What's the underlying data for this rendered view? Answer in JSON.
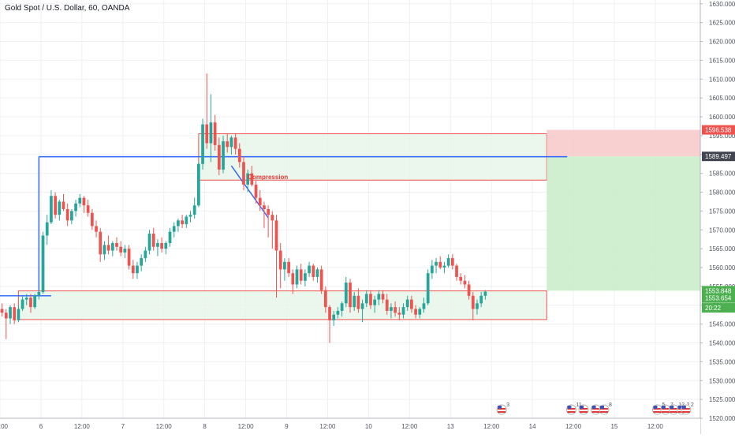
{
  "header": {
    "title": "Gold Spot / U.S. Dollar, 60, OANDA"
  },
  "colors": {
    "up": "#26a69a",
    "down": "#ef5350",
    "grid": "#eef0f3",
    "axis_text": "#50535e",
    "trend_line": "#2962ff",
    "annotation": "#e53935",
    "zone_fill": "#e8f5e9",
    "zone_border": "#ef5350",
    "stop_fill": "#f8c8c8",
    "target_fill": "#c8ecc8",
    "price_tag_red": "#ef5350",
    "price_tag_dark": "#434651",
    "price_tag_green": "#4caf50"
  },
  "chart_data": {
    "type": "candlestick",
    "y_ticks": [
      "1520.000",
      "1525.000",
      "1530.000",
      "1535.000",
      "1540.000",
      "1545.000",
      "1550.000",
      "1555.000",
      "1560.000",
      "1565.000",
      "1570.000",
      "1575.000",
      "1580.000",
      "1585.000",
      "1590.000",
      "1595.000",
      "1600.000",
      "1605.000",
      "1610.000",
      "1615.000",
      "1620.000",
      "1625.000",
      "1630.000"
    ],
    "ylim": [
      1520,
      1631
    ],
    "x_ticks": [
      "12:00",
      "6",
      "12:00",
      "7",
      "12:00",
      "8",
      "12:00",
      "9",
      "12:00",
      "10",
      "12:00",
      "13",
      "12:00",
      "14",
      "12:00",
      "15",
      "12:00"
    ],
    "x_tick_index": [
      0,
      10,
      20,
      30,
      40,
      50,
      60,
      70,
      80,
      90,
      100,
      110,
      120,
      130,
      140,
      150,
      160
    ],
    "x_bar_count": 171,
    "price_labels": [
      {
        "text": "1596.538",
        "price": 1596.538,
        "style": "red"
      },
      {
        "text": "1589.497",
        "price": 1589.497,
        "style": "dark"
      },
      {
        "text": "1553.848",
        "price": 1553.848,
        "style": "green"
      },
      {
        "text": "1553.654",
        "price": 1551.9,
        "style": "green"
      },
      {
        "text": "20:22",
        "price": 1549.3,
        "style": "green"
      }
    ],
    "zones": [
      {
        "name": "resistance-zone",
        "start": 48,
        "end": 133,
        "low": 1583.2,
        "high": 1595.5
      },
      {
        "name": "support-zone",
        "start": 4,
        "end": 133,
        "low": 1546.2,
        "high": 1553.8
      }
    ],
    "position": {
      "start": 133,
      "entry": 1589.497,
      "stop": 1596.538,
      "target": 1553.848
    },
    "lines": [
      {
        "name": "horizontal-line-top",
        "points": [
          [
            9,
            1589.4
          ],
          [
            138,
            1589.4
          ]
        ]
      },
      {
        "name": "vertical-line",
        "points": [
          [
            9,
            1589.4
          ],
          [
            9,
            1552.5
          ]
        ]
      },
      {
        "name": "horizontal-line-bottom",
        "points": [
          [
            -2,
            1552.5
          ],
          [
            12,
            1552.5
          ]
        ]
      },
      {
        "name": "compression-trendline",
        "points": [
          [
            56,
            1587.0
          ],
          [
            65,
            1573.2
          ]
        ]
      }
    ],
    "annotation": {
      "text": "Compression",
      "x": 60,
      "price": 1583.5
    },
    "event_markers": [
      {
        "x": 122,
        "count": "3"
      },
      {
        "x": 139,
        "count": "11"
      },
      {
        "x": 142,
        "count": ""
      },
      {
        "x": 145,
        "count": ""
      },
      {
        "x": 147,
        "count": "8"
      },
      {
        "x": 160,
        "count": "5"
      },
      {
        "x": 162,
        "count": "7"
      },
      {
        "x": 164,
        "count": "12"
      },
      {
        "x": 166,
        "count": "2"
      },
      {
        "x": 167,
        "count": "2"
      }
    ],
    "ohlc": [
      [
        1549.0,
        1550.5,
        1547.0,
        1548.0
      ],
      [
        1548.0,
        1549.0,
        1541.0,
        1546.5
      ],
      [
        1546.5,
        1550.0,
        1545.0,
        1549.5
      ],
      [
        1549.5,
        1550.5,
        1545.0,
        1546.0
      ],
      [
        1546.0,
        1550.0,
        1545.5,
        1549.0
      ],
      [
        1549.0,
        1552.5,
        1548.5,
        1551.5
      ],
      [
        1551.5,
        1553.0,
        1550.0,
        1552.0
      ],
      [
        1552.0,
        1553.0,
        1548.0,
        1549.5
      ],
      [
        1549.5,
        1553.0,
        1549.0,
        1552.5
      ],
      [
        1552.5,
        1554.0,
        1551.5,
        1553.5
      ],
      [
        1553.5,
        1569.5,
        1553.0,
        1568.5
      ],
      [
        1568.5,
        1574.0,
        1566.0,
        1572.0
      ],
      [
        1572.0,
        1580.5,
        1571.5,
        1579.0
      ],
      [
        1579.0,
        1580.0,
        1573.0,
        1574.0
      ],
      [
        1574.0,
        1578.0,
        1572.5,
        1577.5
      ],
      [
        1577.5,
        1579.5,
        1575.0,
        1575.5
      ],
      [
        1575.5,
        1577.0,
        1571.0,
        1572.5
      ],
      [
        1572.5,
        1575.5,
        1571.5,
        1575.0
      ],
      [
        1575.0,
        1578.0,
        1573.5,
        1577.0
      ],
      [
        1577.0,
        1579.5,
        1576.0,
        1578.5
      ],
      [
        1578.5,
        1579.0,
        1574.5,
        1576.5
      ],
      [
        1576.5,
        1578.0,
        1573.5,
        1574.5
      ],
      [
        1574.5,
        1575.5,
        1570.0,
        1571.0
      ],
      [
        1571.0,
        1572.5,
        1568.0,
        1569.5
      ],
      [
        1569.5,
        1570.5,
        1561.5,
        1563.5
      ],
      [
        1563.5,
        1567.0,
        1562.0,
        1566.0
      ],
      [
        1566.0,
        1568.5,
        1563.5,
        1564.5
      ],
      [
        1564.5,
        1567.0,
        1563.0,
        1566.5
      ],
      [
        1566.5,
        1568.0,
        1564.5,
        1565.5
      ],
      [
        1565.5,
        1567.0,
        1563.0,
        1564.0
      ],
      [
        1564.0,
        1566.0,
        1562.5,
        1565.0
      ],
      [
        1565.0,
        1566.0,
        1559.5,
        1560.5
      ],
      [
        1560.5,
        1562.0,
        1557.0,
        1558.5
      ],
      [
        1558.5,
        1561.5,
        1557.0,
        1560.5
      ],
      [
        1560.5,
        1563.5,
        1559.0,
        1562.5
      ],
      [
        1562.5,
        1565.5,
        1561.5,
        1564.5
      ],
      [
        1564.5,
        1570.0,
        1563.5,
        1569.0
      ],
      [
        1569.0,
        1570.5,
        1564.5,
        1565.5
      ],
      [
        1565.5,
        1567.5,
        1563.0,
        1566.5
      ],
      [
        1566.5,
        1568.0,
        1564.0,
        1565.0
      ],
      [
        1565.0,
        1567.0,
        1563.5,
        1566.5
      ],
      [
        1566.5,
        1570.5,
        1565.5,
        1569.5
      ],
      [
        1569.5,
        1572.0,
        1568.0,
        1571.0
      ],
      [
        1571.0,
        1573.0,
        1569.5,
        1572.5
      ],
      [
        1572.5,
        1574.0,
        1570.5,
        1571.5
      ],
      [
        1571.5,
        1574.0,
        1570.5,
        1573.5
      ],
      [
        1573.5,
        1575.0,
        1572.0,
        1574.0
      ],
      [
        1574.0,
        1578.5,
        1573.0,
        1576.5
      ],
      [
        1576.5,
        1588.0,
        1576.0,
        1587.5
      ],
      [
        1587.5,
        1599.5,
        1586.0,
        1598.0
      ],
      [
        1598.0,
        1611.5,
        1591.5,
        1593.0
      ],
      [
        1593.0,
        1606.0,
        1588.0,
        1598.5
      ],
      [
        1598.5,
        1600.5,
        1591.0,
        1592.5
      ],
      [
        1592.5,
        1594.5,
        1584.5,
        1586.0
      ],
      [
        1586.0,
        1595.0,
        1585.0,
        1593.5
      ],
      [
        1593.5,
        1595.5,
        1590.5,
        1592.0
      ],
      [
        1592.0,
        1595.0,
        1590.0,
        1594.5
      ],
      [
        1594.5,
        1595.5,
        1590.0,
        1591.5
      ],
      [
        1591.5,
        1593.0,
        1586.5,
        1588.0
      ],
      [
        1588.0,
        1589.5,
        1580.5,
        1582.0
      ],
      [
        1582.0,
        1586.0,
        1580.0,
        1585.0
      ],
      [
        1585.0,
        1587.0,
        1581.5,
        1582.0
      ],
      [
        1582.0,
        1583.0,
        1577.0,
        1578.5
      ],
      [
        1578.5,
        1580.5,
        1575.0,
        1576.5
      ],
      [
        1576.5,
        1577.5,
        1570.5,
        1575.5
      ],
      [
        1575.5,
        1576.5,
        1568.0,
        1574.0
      ],
      [
        1574.0,
        1575.0,
        1565.0,
        1572.5
      ],
      [
        1572.5,
        1574.0,
        1552.0,
        1564.5
      ],
      [
        1564.5,
        1566.5,
        1554.5,
        1559.5
      ],
      [
        1559.5,
        1562.5,
        1556.5,
        1561.5
      ],
      [
        1561.5,
        1562.5,
        1557.5,
        1558.5
      ],
      [
        1558.5,
        1559.5,
        1553.0,
        1555.5
      ],
      [
        1555.5,
        1560.5,
        1554.5,
        1559.5
      ],
      [
        1559.5,
        1561.0,
        1555.5,
        1556.5
      ],
      [
        1556.5,
        1559.5,
        1555.0,
        1558.5
      ],
      [
        1558.5,
        1561.5,
        1557.5,
        1560.5
      ],
      [
        1560.5,
        1561.0,
        1556.5,
        1557.5
      ],
      [
        1557.5,
        1560.0,
        1556.0,
        1559.5
      ],
      [
        1559.5,
        1560.5,
        1553.0,
        1554.0
      ],
      [
        1554.0,
        1555.0,
        1548.0,
        1549.5
      ],
      [
        1549.5,
        1550.0,
        1540.0,
        1546.0
      ],
      [
        1546.0,
        1548.5,
        1544.5,
        1547.5
      ],
      [
        1547.5,
        1549.5,
        1546.5,
        1548.5
      ],
      [
        1548.5,
        1551.0,
        1547.0,
        1550.5
      ],
      [
        1550.5,
        1557.5,
        1549.5,
        1556.0
      ],
      [
        1556.0,
        1557.0,
        1548.0,
        1549.5
      ],
      [
        1549.5,
        1553.5,
        1548.5,
        1552.5
      ],
      [
        1552.5,
        1554.5,
        1548.0,
        1549.0
      ],
      [
        1549.0,
        1551.5,
        1545.5,
        1550.5
      ],
      [
        1550.5,
        1554.0,
        1549.5,
        1553.0
      ],
      [
        1553.0,
        1554.0,
        1549.0,
        1550.0
      ],
      [
        1550.0,
        1552.5,
        1548.0,
        1551.5
      ],
      [
        1551.5,
        1554.0,
        1550.0,
        1553.0
      ],
      [
        1553.0,
        1554.0,
        1550.5,
        1551.5
      ],
      [
        1551.5,
        1553.0,
        1547.5,
        1548.5
      ],
      [
        1548.5,
        1550.5,
        1546.5,
        1549.5
      ],
      [
        1549.5,
        1551.0,
        1547.0,
        1548.0
      ],
      [
        1548.0,
        1549.5,
        1546.0,
        1547.5
      ],
      [
        1547.5,
        1550.5,
        1546.5,
        1549.5
      ],
      [
        1549.5,
        1552.5,
        1548.5,
        1551.5
      ],
      [
        1551.5,
        1552.5,
        1548.0,
        1549.0
      ],
      [
        1549.0,
        1550.0,
        1546.5,
        1547.5
      ],
      [
        1547.5,
        1549.5,
        1546.5,
        1549.0
      ],
      [
        1549.0,
        1552.0,
        1548.0,
        1550.5
      ],
      [
        1550.5,
        1559.5,
        1550.0,
        1558.5
      ],
      [
        1558.5,
        1562.0,
        1557.0,
        1560.5
      ],
      [
        1560.5,
        1562.5,
        1558.5,
        1561.5
      ],
      [
        1561.5,
        1563.0,
        1559.5,
        1560.0
      ],
      [
        1560.0,
        1561.5,
        1558.5,
        1560.5
      ],
      [
        1560.5,
        1563.5,
        1560.0,
        1562.5
      ],
      [
        1562.5,
        1563.5,
        1559.5,
        1560.5
      ],
      [
        1560.5,
        1561.0,
        1556.5,
        1557.5
      ],
      [
        1557.5,
        1558.5,
        1555.5,
        1556.5
      ],
      [
        1556.5,
        1558.0,
        1554.5,
        1555.5
      ],
      [
        1555.5,
        1556.5,
        1551.5,
        1552.5
      ],
      [
        1552.5,
        1553.5,
        1546.0,
        1549.0
      ],
      [
        1549.0,
        1551.5,
        1547.5,
        1550.5
      ],
      [
        1550.5,
        1553.5,
        1549.5,
        1552.5
      ],
      [
        1552.5,
        1554.0,
        1551.5,
        1553.6
      ]
    ]
  }
}
